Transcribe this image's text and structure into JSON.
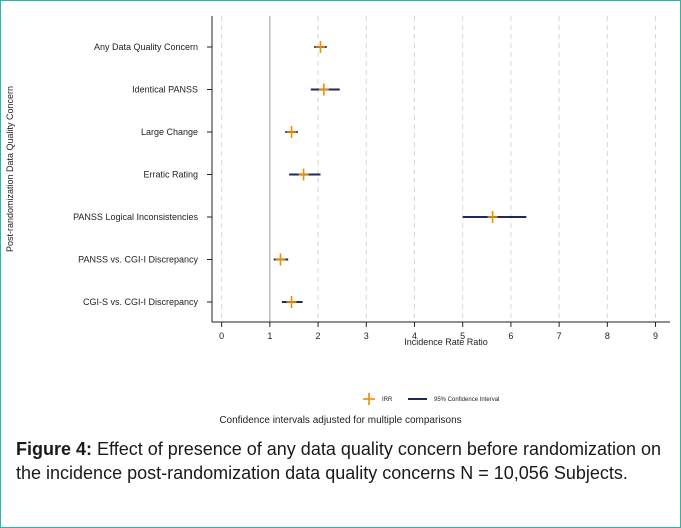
{
  "chart_data": {
    "type": "forest",
    "xlabel": "Incidence Rate Ratio",
    "ylabel": "Post-randomization Data Quality Concern",
    "xlim": [
      -0.2,
      9.3
    ],
    "xticks": [
      0,
      1,
      2,
      3,
      4,
      5,
      6,
      7,
      8,
      9
    ],
    "reference_line": 1,
    "grid": "vertical dashed",
    "legend_position": "bottom",
    "legend": {
      "irr": "IRR",
      "ci": "95% Confidence Interval"
    },
    "note": "Confidence intervals adjusted for multiple comparisons",
    "colors": {
      "irr": "#f08c00",
      "ci": "#1f2a5a",
      "grid": "#d8d8d8",
      "frame": "#2bb6a6"
    },
    "rows": [
      {
        "label": "Any Data Quality Concern",
        "irr": 2.05,
        "lo": 1.92,
        "hi": 2.18
      },
      {
        "label": "Identical PANSS",
        "irr": 2.12,
        "lo": 1.85,
        "hi": 2.45
      },
      {
        "label": "Large Change",
        "irr": 1.45,
        "lo": 1.32,
        "hi": 1.58
      },
      {
        "label": "Erratic Rating",
        "irr": 1.7,
        "lo": 1.4,
        "hi": 2.05
      },
      {
        "label": "PANSS Logical Inconsistencies",
        "irr": 5.62,
        "lo": 5.0,
        "hi": 6.32
      },
      {
        "label": "PANSS vs. CGI-I Discrepancy",
        "irr": 1.22,
        "lo": 1.08,
        "hi": 1.38
      },
      {
        "label": "CGI-S vs. CGI-I Discrepancy",
        "irr": 1.45,
        "lo": 1.25,
        "hi": 1.68
      }
    ]
  },
  "caption": {
    "label": "Figure 4:",
    "text": " Effect of presence of any data quality concern before randomization on the incidence post-randomization data quality concerns N = 10,056 Subjects."
  }
}
